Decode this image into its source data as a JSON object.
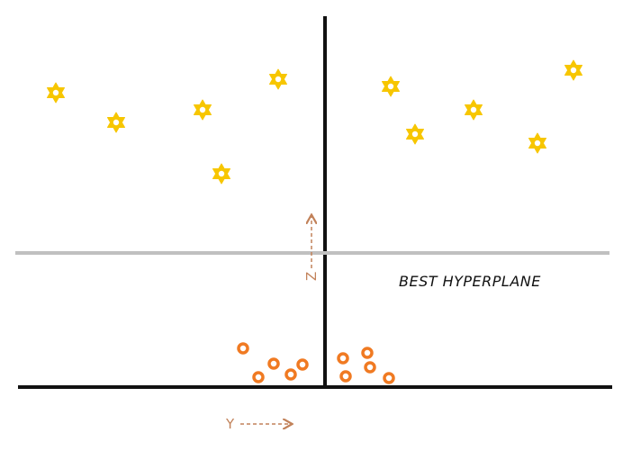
{
  "labels": {
    "hyperplane": "BEST HYPERPLANE",
    "y_axis": "Y",
    "z_axis": "Z"
  },
  "colors": {
    "axis": "#111111",
    "hyperplane_line": "#c0c0c0",
    "star": "#f7c600",
    "circle": "#f07a22",
    "axis_label": "#c2825a"
  },
  "icons": {
    "star": "six-pointed-star-icon",
    "circle": "ring-circle-icon"
  }
}
